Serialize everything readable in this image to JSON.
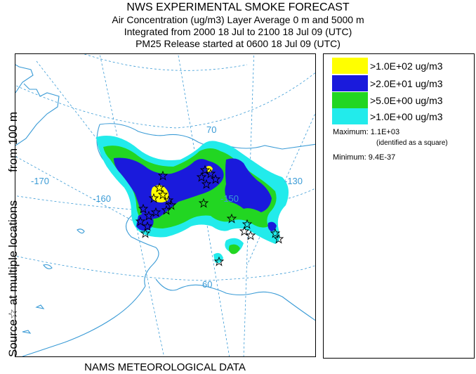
{
  "header": {
    "title": "NWS EXPERIMENTAL SMOKE FORECAST",
    "line2": "Air Concentration (ug/m3) Layer Average    0 m and  5000 m",
    "line3": "Integrated from 2000 18 Jul to 2100 18 Jul 09 (UTC)",
    "line4": "PM25 Release started at 0600 18 Jul 09 (UTC)"
  },
  "side_label": {
    "part1": "Source☆ at multiple locations",
    "part2": "from   100 m"
  },
  "footer": "NAMS METEOROLOGICAL DATA",
  "legend": {
    "items": [
      {
        "label": ">1.0E+02 ug/m3",
        "color": "#ffff00"
      },
      {
        "label": ">2.0E+01 ug/m3",
        "color": "#1a1adc"
      },
      {
        "label": ">5.0E+00 ug/m3",
        "color": "#22d622"
      },
      {
        "label": ">1.0E+00 ug/m3",
        "color": "#22ebeb"
      }
    ],
    "maximum": "Maximum: 1.1E+03",
    "maximum_note": "(identified as a square)",
    "minimum": "Minimum: 9.4E-37"
  },
  "map": {
    "graticule_labels": {
      "lon_170": "-170",
      "lon_160": "-160",
      "lon_150": "-150",
      "lon_130": "-130",
      "lat_70": "70",
      "lat_60": "60"
    }
  }
}
